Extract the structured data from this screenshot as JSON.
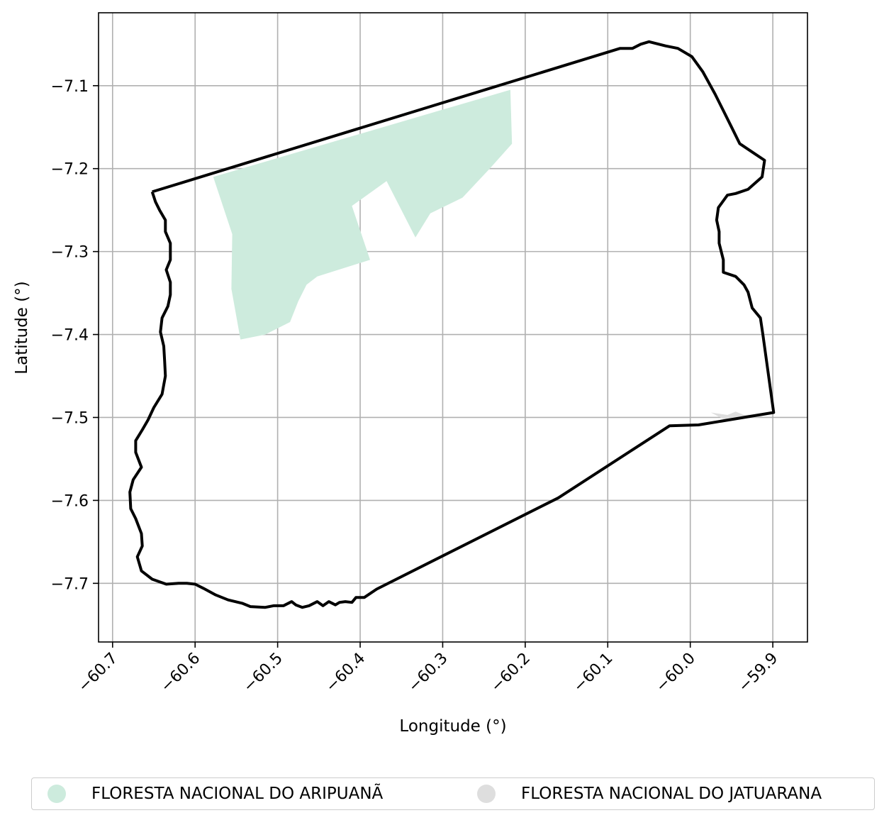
{
  "chart_data": {
    "type": "map",
    "xlabel": "Longitude (°)",
    "ylabel": "Latitude (°)",
    "xlim": [
      -60.717,
      -59.858
    ],
    "ylim": [
      -7.7707,
      -7.0121
    ],
    "xticks": [
      -60.7,
      -60.6,
      -60.5,
      -60.4,
      -60.3,
      -60.2,
      -60.1,
      -60.0,
      -59.9
    ],
    "xtick_labels": [
      "−60.7",
      "−60.6",
      "−60.5",
      "−60.4",
      "−60.3",
      "−60.2",
      "−60.1",
      "−60.0",
      "−59.9"
    ],
    "yticks": [
      -7.1,
      -7.2,
      -7.3,
      -7.4,
      -7.5,
      -7.6,
      -7.7
    ],
    "ytick_labels": [
      "−7.1",
      "−7.2",
      "−7.3",
      "−7.4",
      "−7.5",
      "−7.6",
      "−7.7"
    ],
    "grid": true,
    "legend_position": "bottom",
    "boundary": {
      "color": "#000000",
      "coords": [
        [
          -60.652,
          -7.228
        ],
        [
          -60.648,
          -7.24
        ],
        [
          -60.643,
          -7.25
        ],
        [
          -60.636,
          -7.262
        ],
        [
          -60.636,
          -7.276
        ],
        [
          -60.63,
          -7.29
        ],
        [
          -60.63,
          -7.31
        ],
        [
          -60.635,
          -7.322
        ],
        [
          -60.63,
          -7.337
        ],
        [
          -60.63,
          -7.352
        ],
        [
          -60.633,
          -7.366
        ],
        [
          -60.64,
          -7.38
        ],
        [
          -60.642,
          -7.397
        ],
        [
          -60.638,
          -7.414
        ],
        [
          -60.637,
          -7.43
        ],
        [
          -60.636,
          -7.45
        ],
        [
          -60.64,
          -7.472
        ],
        [
          -60.65,
          -7.488
        ],
        [
          -60.657,
          -7.503
        ],
        [
          -60.664,
          -7.515
        ],
        [
          -60.672,
          -7.528
        ],
        [
          -60.672,
          -7.542
        ],
        [
          -60.665,
          -7.56
        ],
        [
          -60.675,
          -7.575
        ],
        [
          -60.679,
          -7.59
        ],
        [
          -60.678,
          -7.61
        ],
        [
          -60.672,
          -7.622
        ],
        [
          -60.665,
          -7.64
        ],
        [
          -60.664,
          -7.655
        ],
        [
          -60.67,
          -7.668
        ],
        [
          -60.665,
          -7.685
        ],
        [
          -60.652,
          -7.695
        ],
        [
          -60.635,
          -7.701
        ],
        [
          -60.62,
          -7.7
        ],
        [
          -60.61,
          -7.7
        ],
        [
          -60.6,
          -7.701
        ],
        [
          -60.59,
          -7.706
        ],
        [
          -60.575,
          -7.714
        ],
        [
          -60.56,
          -7.72
        ],
        [
          -60.543,
          -7.724
        ],
        [
          -60.533,
          -7.728
        ],
        [
          -60.515,
          -7.729
        ],
        [
          -60.505,
          -7.727
        ],
        [
          -60.493,
          -7.727
        ],
        [
          -60.483,
          -7.722
        ],
        [
          -60.478,
          -7.726
        ],
        [
          -60.47,
          -7.729
        ],
        [
          -60.462,
          -7.727
        ],
        [
          -60.452,
          -7.722
        ],
        [
          -60.445,
          -7.727
        ],
        [
          -60.438,
          -7.722
        ],
        [
          -60.43,
          -7.726
        ],
        [
          -60.425,
          -7.723
        ],
        [
          -60.418,
          -7.722
        ],
        [
          -60.41,
          -7.723
        ],
        [
          -60.405,
          -7.717
        ],
        [
          -60.395,
          -7.717
        ],
        [
          -60.38,
          -7.707
        ],
        [
          -60.3,
          -7.667
        ],
        [
          -60.16,
          -7.597
        ],
        [
          -60.025,
          -7.51
        ],
        [
          -59.99,
          -7.509
        ],
        [
          -59.899,
          -7.494
        ],
        [
          -59.912,
          -7.4
        ],
        [
          -59.915,
          -7.38
        ],
        [
          -59.925,
          -7.368
        ],
        [
          -59.93,
          -7.349
        ],
        [
          -59.935,
          -7.34
        ],
        [
          -59.945,
          -7.33
        ],
        [
          -59.96,
          -7.325
        ],
        [
          -59.96,
          -7.31
        ],
        [
          -59.965,
          -7.29
        ],
        [
          -59.965,
          -7.276
        ],
        [
          -59.968,
          -7.262
        ],
        [
          -59.966,
          -7.247
        ],
        [
          -59.955,
          -7.232
        ],
        [
          -59.945,
          -7.23
        ],
        [
          -59.93,
          -7.225
        ],
        [
          -59.913,
          -7.21
        ],
        [
          -59.91,
          -7.19
        ],
        [
          -59.925,
          -7.18
        ],
        [
          -59.94,
          -7.17
        ],
        [
          -59.95,
          -7.15
        ],
        [
          -59.96,
          -7.13
        ],
        [
          -59.97,
          -7.11
        ],
        [
          -59.985,
          -7.083
        ],
        [
          -59.998,
          -7.065
        ],
        [
          -60.015,
          -7.055
        ],
        [
          -60.03,
          -7.052
        ],
        [
          -60.05,
          -7.047
        ],
        [
          -60.06,
          -7.05
        ],
        [
          -60.07,
          -7.055
        ],
        [
          -60.085,
          -7.055
        ],
        [
          -60.652,
          -7.228
        ]
      ]
    },
    "areas": [
      {
        "name": "FLORESTA NACIONAL DO ARIPUANÃ",
        "color": "#cdebdd",
        "coords": [
          [
            -60.578,
            -7.21
          ],
          [
            -60.555,
            -7.279
          ],
          [
            -60.556,
            -7.345
          ],
          [
            -60.545,
            -7.406
          ],
          [
            -60.515,
            -7.4
          ],
          [
            -60.485,
            -7.385
          ],
          [
            -60.475,
            -7.36
          ],
          [
            -60.465,
            -7.34
          ],
          [
            -60.452,
            -7.33
          ],
          [
            -60.388,
            -7.31
          ],
          [
            -60.41,
            -7.245
          ],
          [
            -60.368,
            -7.215
          ],
          [
            -60.333,
            -7.283
          ],
          [
            -60.315,
            -7.254
          ],
          [
            -60.276,
            -7.235
          ],
          [
            -60.243,
            -7.2
          ],
          [
            -60.216,
            -7.17
          ],
          [
            -60.218,
            -7.105
          ],
          [
            -60.578,
            -7.21
          ]
        ]
      },
      {
        "name": "FLORESTA NACIONAL DO JATUARANA",
        "color": "#dedede",
        "coords": [
          [
            -59.975,
            -7.494
          ],
          [
            -59.955,
            -7.497
          ],
          [
            -59.945,
            -7.493
          ],
          [
            -59.935,
            -7.497
          ],
          [
            -59.915,
            -7.496
          ],
          [
            -59.918,
            -7.5
          ],
          [
            -59.96,
            -7.502
          ],
          [
            -59.975,
            -7.494
          ]
        ]
      }
    ]
  },
  "legend": {
    "items": [
      {
        "label": "FLORESTA NACIONAL DO ARIPUANÃ",
        "color": "#cdebdd"
      },
      {
        "label": "FLORESTA NACIONAL DO JATUARANA",
        "color": "#dedede"
      }
    ]
  }
}
